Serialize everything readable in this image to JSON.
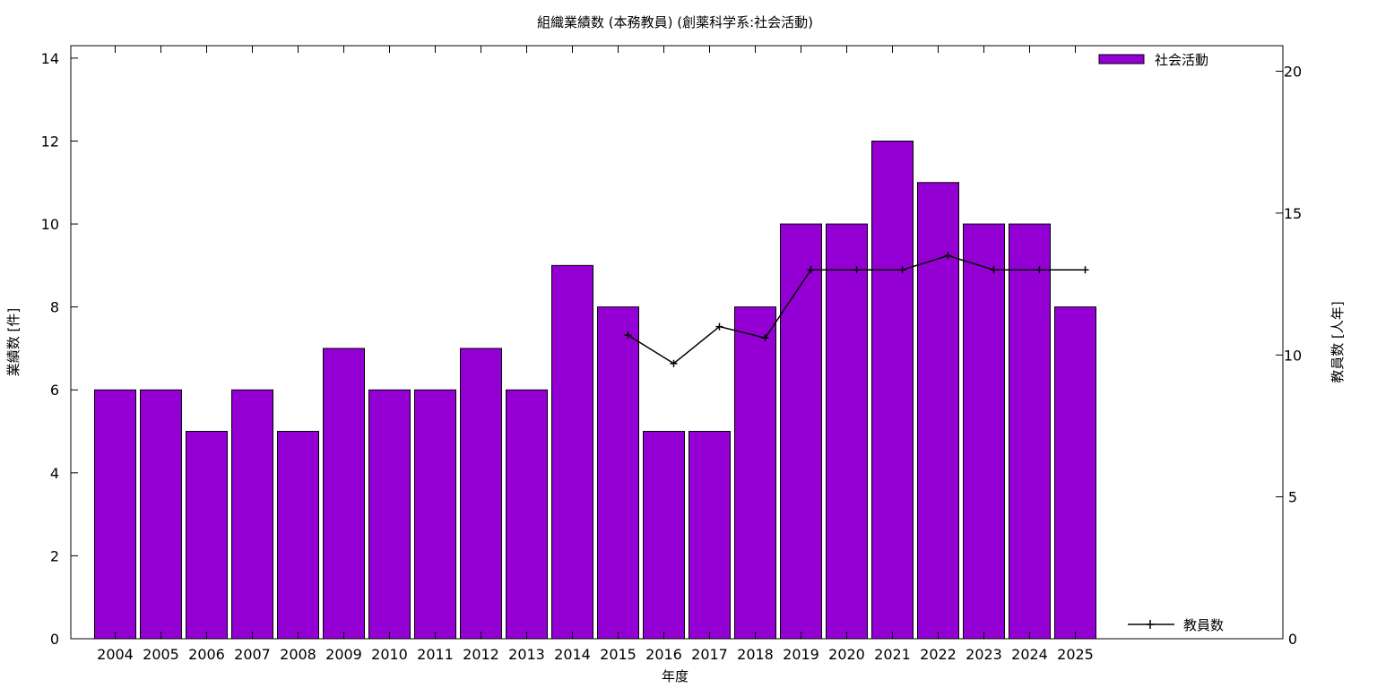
{
  "chart_data": {
    "type": "bar",
    "title": "組織業績数 (本務教員) (創薬科学系:社会活動)",
    "xlabel": "年度",
    "ylabel": "業績数 [件]",
    "y2label": "教員数 [人年]",
    "categories": [
      "2004",
      "2005",
      "2006",
      "2007",
      "2008",
      "2009",
      "2010",
      "2011",
      "2012",
      "2013",
      "2014",
      "2015",
      "2016",
      "2017",
      "2018",
      "2019",
      "2020",
      "2021",
      "2022",
      "2023",
      "2024",
      "2025"
    ],
    "series": [
      {
        "name": "社会活動",
        "type": "bar",
        "axis": "left",
        "color": "#9400d3",
        "values": [
          6,
          6,
          5,
          6,
          5,
          7,
          6,
          6,
          7,
          6,
          9,
          8,
          5,
          5,
          8,
          10,
          10,
          12,
          11,
          10,
          10,
          8
        ]
      },
      {
        "name": "教員数",
        "type": "line",
        "axis": "right",
        "color": "#000000",
        "values": [
          null,
          null,
          null,
          null,
          null,
          null,
          null,
          null,
          null,
          null,
          null,
          10.7,
          9.7,
          11.0,
          10.6,
          13.0,
          13.0,
          13.0,
          13.5,
          13.0,
          13.0,
          13.0
        ]
      }
    ],
    "ylim": [
      0,
      14.3
    ],
    "y2lim": [
      0,
      20.9
    ],
    "yticks": [
      0,
      2,
      4,
      6,
      8,
      10,
      12,
      14
    ],
    "y2ticks": [
      0,
      5,
      10,
      15,
      20
    ],
    "grid": false,
    "legend": "top-right"
  }
}
